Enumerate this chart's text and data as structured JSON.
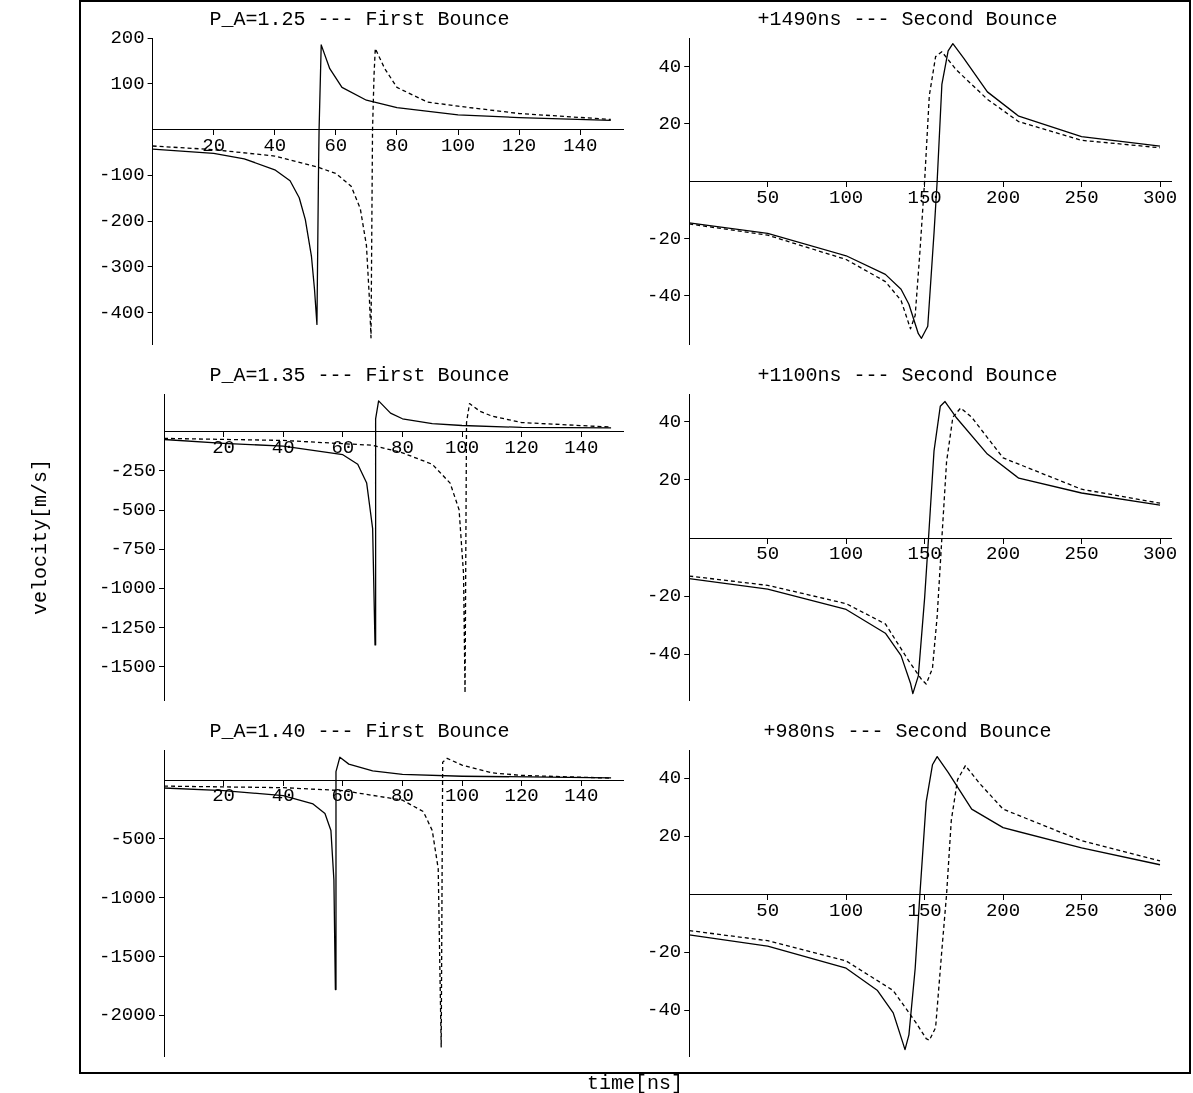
{
  "chart_data": [
    {
      "type": "line",
      "title": "P_A=1.25 --- First Bounce",
      "xlim": [
        0,
        154
      ],
      "ylim": [
        -470,
        200
      ],
      "xticks": [
        20,
        40,
        60,
        80,
        100,
        120,
        140
      ],
      "yticks": [
        -400,
        -300,
        -200,
        -100,
        100,
        200
      ],
      "series": [
        {
          "color": "#000000",
          "line_style": "solid",
          "x": [
            0,
            20,
            30,
            40,
            45,
            48,
            50,
            52,
            53,
            53.8,
            54.3,
            54.5,
            55.2,
            58,
            62,
            70,
            80,
            100,
            120,
            150
          ],
          "values": [
            -43,
            -52,
            -64,
            -88,
            -112,
            -149,
            -197,
            -277,
            -349,
            -426,
            -100,
            0,
            185,
            133,
            92,
            64,
            48,
            32,
            26,
            20
          ]
        },
        {
          "color": "#000000",
          "line_style": "dashed",
          "x": [
            0,
            20,
            40,
            54,
            60,
            65,
            68,
            70,
            71,
            71.5,
            72,
            72.5,
            72.9,
            76,
            80,
            90,
            100,
            120,
            150
          ],
          "values": [
            -36,
            -44,
            -58,
            -82,
            -96,
            -124,
            -173,
            -253,
            -373,
            -455,
            0,
            120,
            177,
            133,
            92,
            60,
            51,
            35,
            22
          ]
        }
      ]
    },
    {
      "type": "line",
      "title": "+1490ns --- Second Bounce",
      "xlim": [
        0,
        307
      ],
      "ylim": [
        -57,
        50
      ],
      "xticks": [
        50,
        100,
        150,
        200,
        250,
        300
      ],
      "yticks": [
        -40,
        -20,
        20,
        40
      ],
      "series": [
        {
          "color": "#000000",
          "line_style": "solid",
          "x": [
            0,
            50,
            100,
            125,
            135,
            140,
            146,
            148,
            152,
            156,
            158,
            161,
            165,
            168,
            175,
            190,
            210,
            250,
            300
          ],
          "values": [
            -14.5,
            -18.2,
            -26,
            -32.5,
            -37.7,
            -42.9,
            -53.2,
            -54.8,
            -50.6,
            -18,
            0,
            33.8,
            45.5,
            48,
            42.9,
            31.2,
            22.7,
            15.6,
            12.3
          ]
        },
        {
          "color": "#000000",
          "line_style": "dashed",
          "x": [
            0,
            50,
            100,
            125,
            135,
            141,
            144,
            147,
            150,
            153,
            157,
            161,
            170,
            190,
            210,
            250,
            300
          ],
          "values": [
            -14.9,
            -18.8,
            -27.3,
            -35,
            -41.6,
            -51.5,
            -46.8,
            -24.7,
            0,
            29.9,
            43.5,
            45.2,
            39,
            28.6,
            20.8,
            14.3,
            11.7
          ]
        }
      ]
    },
    {
      "type": "line",
      "title": "P_A=1.35 --- First Bounce",
      "ylabel": "velocity[m/s]",
      "xlim": [
        0,
        154
      ],
      "ylim": [
        -1715,
        240
      ],
      "xticks": [
        20,
        40,
        60,
        80,
        100,
        120,
        140
      ],
      "yticks": [
        -250,
        -500,
        -750,
        -1000,
        -1250,
        -1500
      ],
      "series": [
        {
          "color": "#000000",
          "line_style": "solid",
          "x": [
            0,
            20,
            40,
            60,
            65,
            68,
            70,
            70.8,
            71,
            72,
            76,
            80,
            90,
            100,
            120,
            150
          ],
          "values": [
            -50,
            -75,
            -92,
            -147,
            -208,
            -328,
            -618,
            -1360,
            82,
            196,
            118,
            82,
            51,
            39,
            27,
            24
          ]
        },
        {
          "color": "#000000",
          "line_style": "dashed",
          "x": [
            0,
            40,
            70,
            80,
            90,
            96,
            99,
            100.5,
            101,
            101.5,
            102.5,
            106,
            110,
            120,
            150
          ],
          "values": [
            -43,
            -56,
            -87,
            -135,
            -208,
            -328,
            -498,
            -908,
            -1667,
            58,
            179,
            130,
            99,
            58,
            29
          ]
        }
      ]
    },
    {
      "type": "line",
      "title": "+1100ns --- Second Bounce",
      "xlim": [
        0,
        307
      ],
      "ylim": [
        -56,
        49.6
      ],
      "xticks": [
        50,
        100,
        150,
        200,
        250,
        300
      ],
      "yticks": [
        -40,
        -20,
        20,
        40
      ],
      "series": [
        {
          "color": "#000000",
          "line_style": "solid",
          "x": [
            0,
            50,
            100,
            125,
            135,
            141,
            142.5,
            146,
            150,
            152.5,
            156,
            160,
            163,
            170,
            190,
            210,
            250,
            300
          ],
          "values": [
            -14,
            -17.6,
            -24.6,
            -32.8,
            -40.5,
            -50,
            -53.6,
            -47.5,
            -20.7,
            0,
            30,
            45.4,
            47,
            41.6,
            28.9,
            20.6,
            15.5,
            11.3
          ]
        },
        {
          "color": "#000000",
          "line_style": "dashed",
          "x": [
            0,
            50,
            100,
            125,
            140,
            148,
            151,
            155,
            158,
            161,
            164,
            168,
            173,
            180,
            200,
            250,
            300
          ],
          "values": [
            -13.1,
            -16.3,
            -22.6,
            -29.6,
            -42.4,
            -48.7,
            -50.3,
            -44.9,
            -27,
            0,
            26.3,
            41.6,
            44.8,
            41.6,
            27.6,
            16.8,
            12
          ]
        }
      ]
    },
    {
      "type": "line",
      "title": "P_A=1.40 --- First Bounce",
      "xlabel": "time[ns]",
      "xlim": [
        0,
        154
      ],
      "ylim": [
        -2350,
        255
      ],
      "xticks": [
        20,
        40,
        60,
        80,
        100,
        120,
        140
      ],
      "yticks": [
        -500,
        -1000,
        -1500,
        -2000
      ],
      "series": [
        {
          "color": "#000000",
          "line_style": "solid",
          "x": [
            0,
            20,
            40,
            50,
            54,
            56,
            57,
            57.5,
            57.7,
            59,
            62,
            70,
            80,
            100,
            150
          ],
          "values": [
            -68,
            -90,
            -132,
            -203,
            -284,
            -429,
            -848,
            -1780,
            71,
            194,
            135,
            77,
            48,
            32,
            19
          ]
        },
        {
          "color": "#000000",
          "line_style": "dashed",
          "x": [
            0,
            40,
            60,
            80,
            87,
            90,
            92,
            93,
            93.5,
            95,
            100,
            110,
            120,
            150
          ],
          "values": [
            -52,
            -65,
            -90,
            -171,
            -268,
            -429,
            -752,
            -2268,
            152,
            184,
            126,
            61,
            39,
            16
          ]
        }
      ]
    },
    {
      "type": "line",
      "title": "+980ns --- Second Bounce",
      "xlim": [
        0,
        307
      ],
      "ylim": [
        -56,
        49.8
      ],
      "xticks": [
        50,
        100,
        150,
        200,
        250,
        300
      ],
      "yticks": [
        -40,
        -20,
        20,
        40
      ],
      "series": [
        {
          "color": "#000000",
          "line_style": "solid",
          "x": [
            0,
            50,
            100,
            120,
            130,
            136,
            137.5,
            140,
            144,
            147,
            151,
            155,
            158,
            165,
            180,
            200,
            250,
            300
          ],
          "values": [
            -14,
            -17.9,
            -25.5,
            -33.2,
            -40.9,
            -51,
            -53.6,
            -48.5,
            -25.5,
            0,
            31.9,
            44.7,
            47.5,
            42.1,
            29.4,
            23,
            16,
            10.2
          ]
        },
        {
          "color": "#000000",
          "line_style": "dashed",
          "x": [
            0,
            50,
            100,
            130,
            145,
            151,
            153,
            157,
            161,
            164,
            167,
            171,
            176,
            185,
            200,
            250,
            300
          ],
          "values": [
            -12.5,
            -16,
            -23,
            -33.2,
            -44.7,
            -49.8,
            -50.4,
            -46,
            -19.2,
            0,
            25.5,
            39.6,
            44.4,
            38.3,
            29.4,
            18.5,
            11.5
          ]
        }
      ]
    }
  ]
}
